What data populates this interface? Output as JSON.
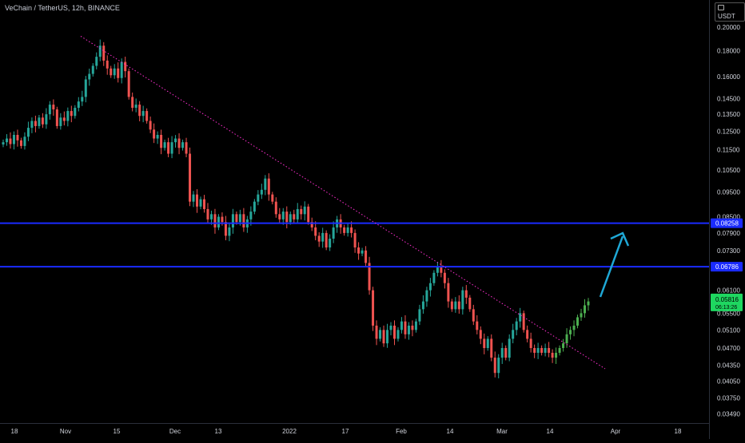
{
  "header": {
    "title": "VeChain / TetherUS, 12h, BINANCE",
    "currency_label": "USDT"
  },
  "colors": {
    "up": "#26a69a",
    "up_bright": "#4caf50",
    "down": "#ef5350",
    "hline": "#1a2bff",
    "trend": "#ff2fd0",
    "arrow": "#1fa8d6",
    "price_badge": "#1ed760"
  },
  "chart_data": {
    "type": "candlestick",
    "title": "VeChain / TetherUS, 12h, BINANCE",
    "y_scale": "log",
    "ylim": [
      0.0335,
      0.215
    ],
    "y_ticks": [
      "0.20000",
      "0.18000",
      "0.16000",
      "0.14500",
      "0.13500",
      "0.12500",
      "0.11500",
      "0.10500",
      "0.09500",
      "0.08500",
      "0.07900",
      "0.07300",
      "0.06100",
      "0.05500",
      "0.05100",
      "0.04700",
      "0.04350",
      "0.04050",
      "0.03750",
      "0.03490"
    ],
    "x_ticks": [
      "18",
      "Nov",
      "15",
      "Dec",
      "13",
      "2022",
      "17",
      "Feb",
      "14",
      "Mar",
      "14",
      "Apr",
      "18"
    ],
    "horizontal_levels": [
      {
        "label": "0.08258",
        "value": 0.08258
      },
      {
        "label": "0.06786",
        "value": 0.06786
      }
    ],
    "current_price": {
      "label": "0.05816",
      "countdown": "06:13:26",
      "value": 0.05816
    },
    "closes": [
      0.119,
      0.121,
      0.118,
      0.123,
      0.12,
      0.117,
      0.122,
      0.127,
      0.131,
      0.128,
      0.133,
      0.129,
      0.135,
      0.141,
      0.138,
      0.128,
      0.133,
      0.131,
      0.137,
      0.134,
      0.139,
      0.143,
      0.146,
      0.158,
      0.162,
      0.168,
      0.175,
      0.184,
      0.172,
      0.166,
      0.161,
      0.166,
      0.159,
      0.171,
      0.164,
      0.146,
      0.139,
      0.141,
      0.134,
      0.137,
      0.131,
      0.126,
      0.121,
      0.123,
      0.116,
      0.119,
      0.113,
      0.119,
      0.121,
      0.116,
      0.119,
      0.113,
      0.091,
      0.094,
      0.089,
      0.092,
      0.088,
      0.084,
      0.086,
      0.081,
      0.085,
      0.083,
      0.078,
      0.081,
      0.086,
      0.083,
      0.086,
      0.081,
      0.084,
      0.087,
      0.091,
      0.094,
      0.096,
      0.101,
      0.094,
      0.091,
      0.086,
      0.084,
      0.087,
      0.083,
      0.086,
      0.084,
      0.088,
      0.086,
      0.089,
      0.083,
      0.081,
      0.078,
      0.076,
      0.079,
      0.074,
      0.077,
      0.081,
      0.084,
      0.081,
      0.079,
      0.081,
      0.079,
      0.074,
      0.072,
      0.073,
      0.069,
      0.061,
      0.052,
      0.049,
      0.051,
      0.048,
      0.051,
      0.052,
      0.049,
      0.051,
      0.053,
      0.05,
      0.052,
      0.051,
      0.053,
      0.056,
      0.058,
      0.061,
      0.063,
      0.066,
      0.068,
      0.066,
      0.063,
      0.058,
      0.056,
      0.058,
      0.056,
      0.061,
      0.059,
      0.056,
      0.053,
      0.051,
      0.049,
      0.047,
      0.049,
      0.045,
      0.042,
      0.045,
      0.047,
      0.045,
      0.049,
      0.051,
      0.053,
      0.055,
      0.051,
      0.049,
      0.047,
      0.046,
      0.047,
      0.046,
      0.047,
      0.046,
      0.045,
      0.046,
      0.047,
      0.048,
      0.05,
      0.051,
      0.052,
      0.054,
      0.055,
      0.057,
      0.058
    ]
  }
}
